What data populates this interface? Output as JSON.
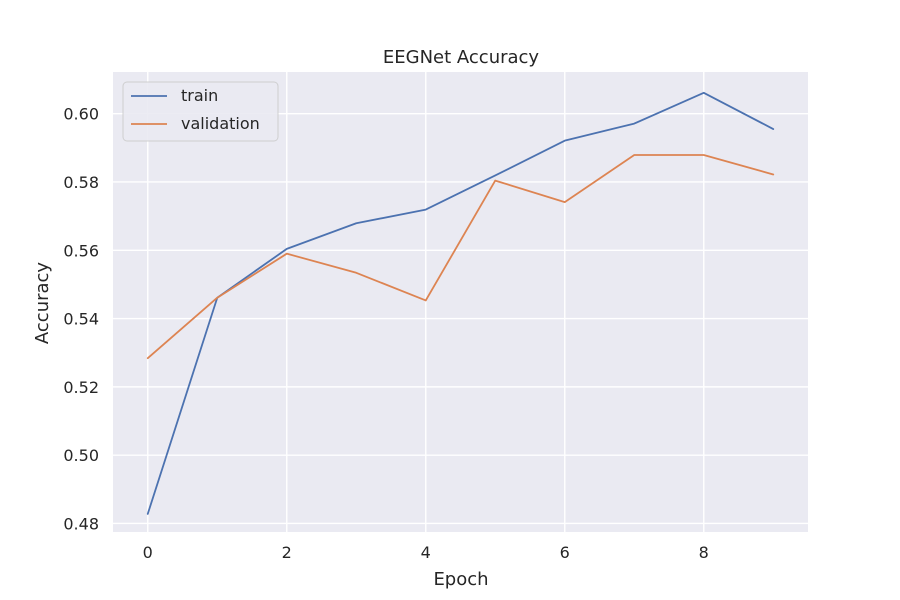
{
  "chart_data": {
    "type": "line",
    "title": "EEGNet Accuracy",
    "xlabel": "Epoch",
    "ylabel": "Accuracy",
    "x": [
      0,
      1,
      2,
      3,
      4,
      5,
      6,
      7,
      8,
      9
    ],
    "xlim": [
      -0.5,
      9.5
    ],
    "ylim": [
      0.4775,
      0.6122
    ],
    "xticks": [
      0,
      2,
      4,
      6,
      8
    ],
    "yticks": [
      0.48,
      0.5,
      0.52,
      0.54,
      0.56,
      0.58,
      0.6
    ],
    "xtick_labels": [
      "0",
      "2",
      "4",
      "6",
      "8"
    ],
    "ytick_labels": [
      "0.48",
      "0.50",
      "0.52",
      "0.54",
      "0.56",
      "0.58",
      "0.60"
    ],
    "grid": true,
    "legend_position": "top-left",
    "series": [
      {
        "name": "train",
        "color": "#4c72b0",
        "values": [
          0.4828,
          0.5461,
          0.5604,
          0.5679,
          0.5719,
          0.5819,
          0.5921,
          0.5971,
          0.6061,
          0.5955
        ]
      },
      {
        "name": "validation",
        "color": "#dd8452",
        "values": [
          0.5284,
          0.5461,
          0.559,
          0.5534,
          0.5453,
          0.5804,
          0.5741,
          0.5879,
          0.5879,
          0.5822
        ]
      }
    ]
  }
}
